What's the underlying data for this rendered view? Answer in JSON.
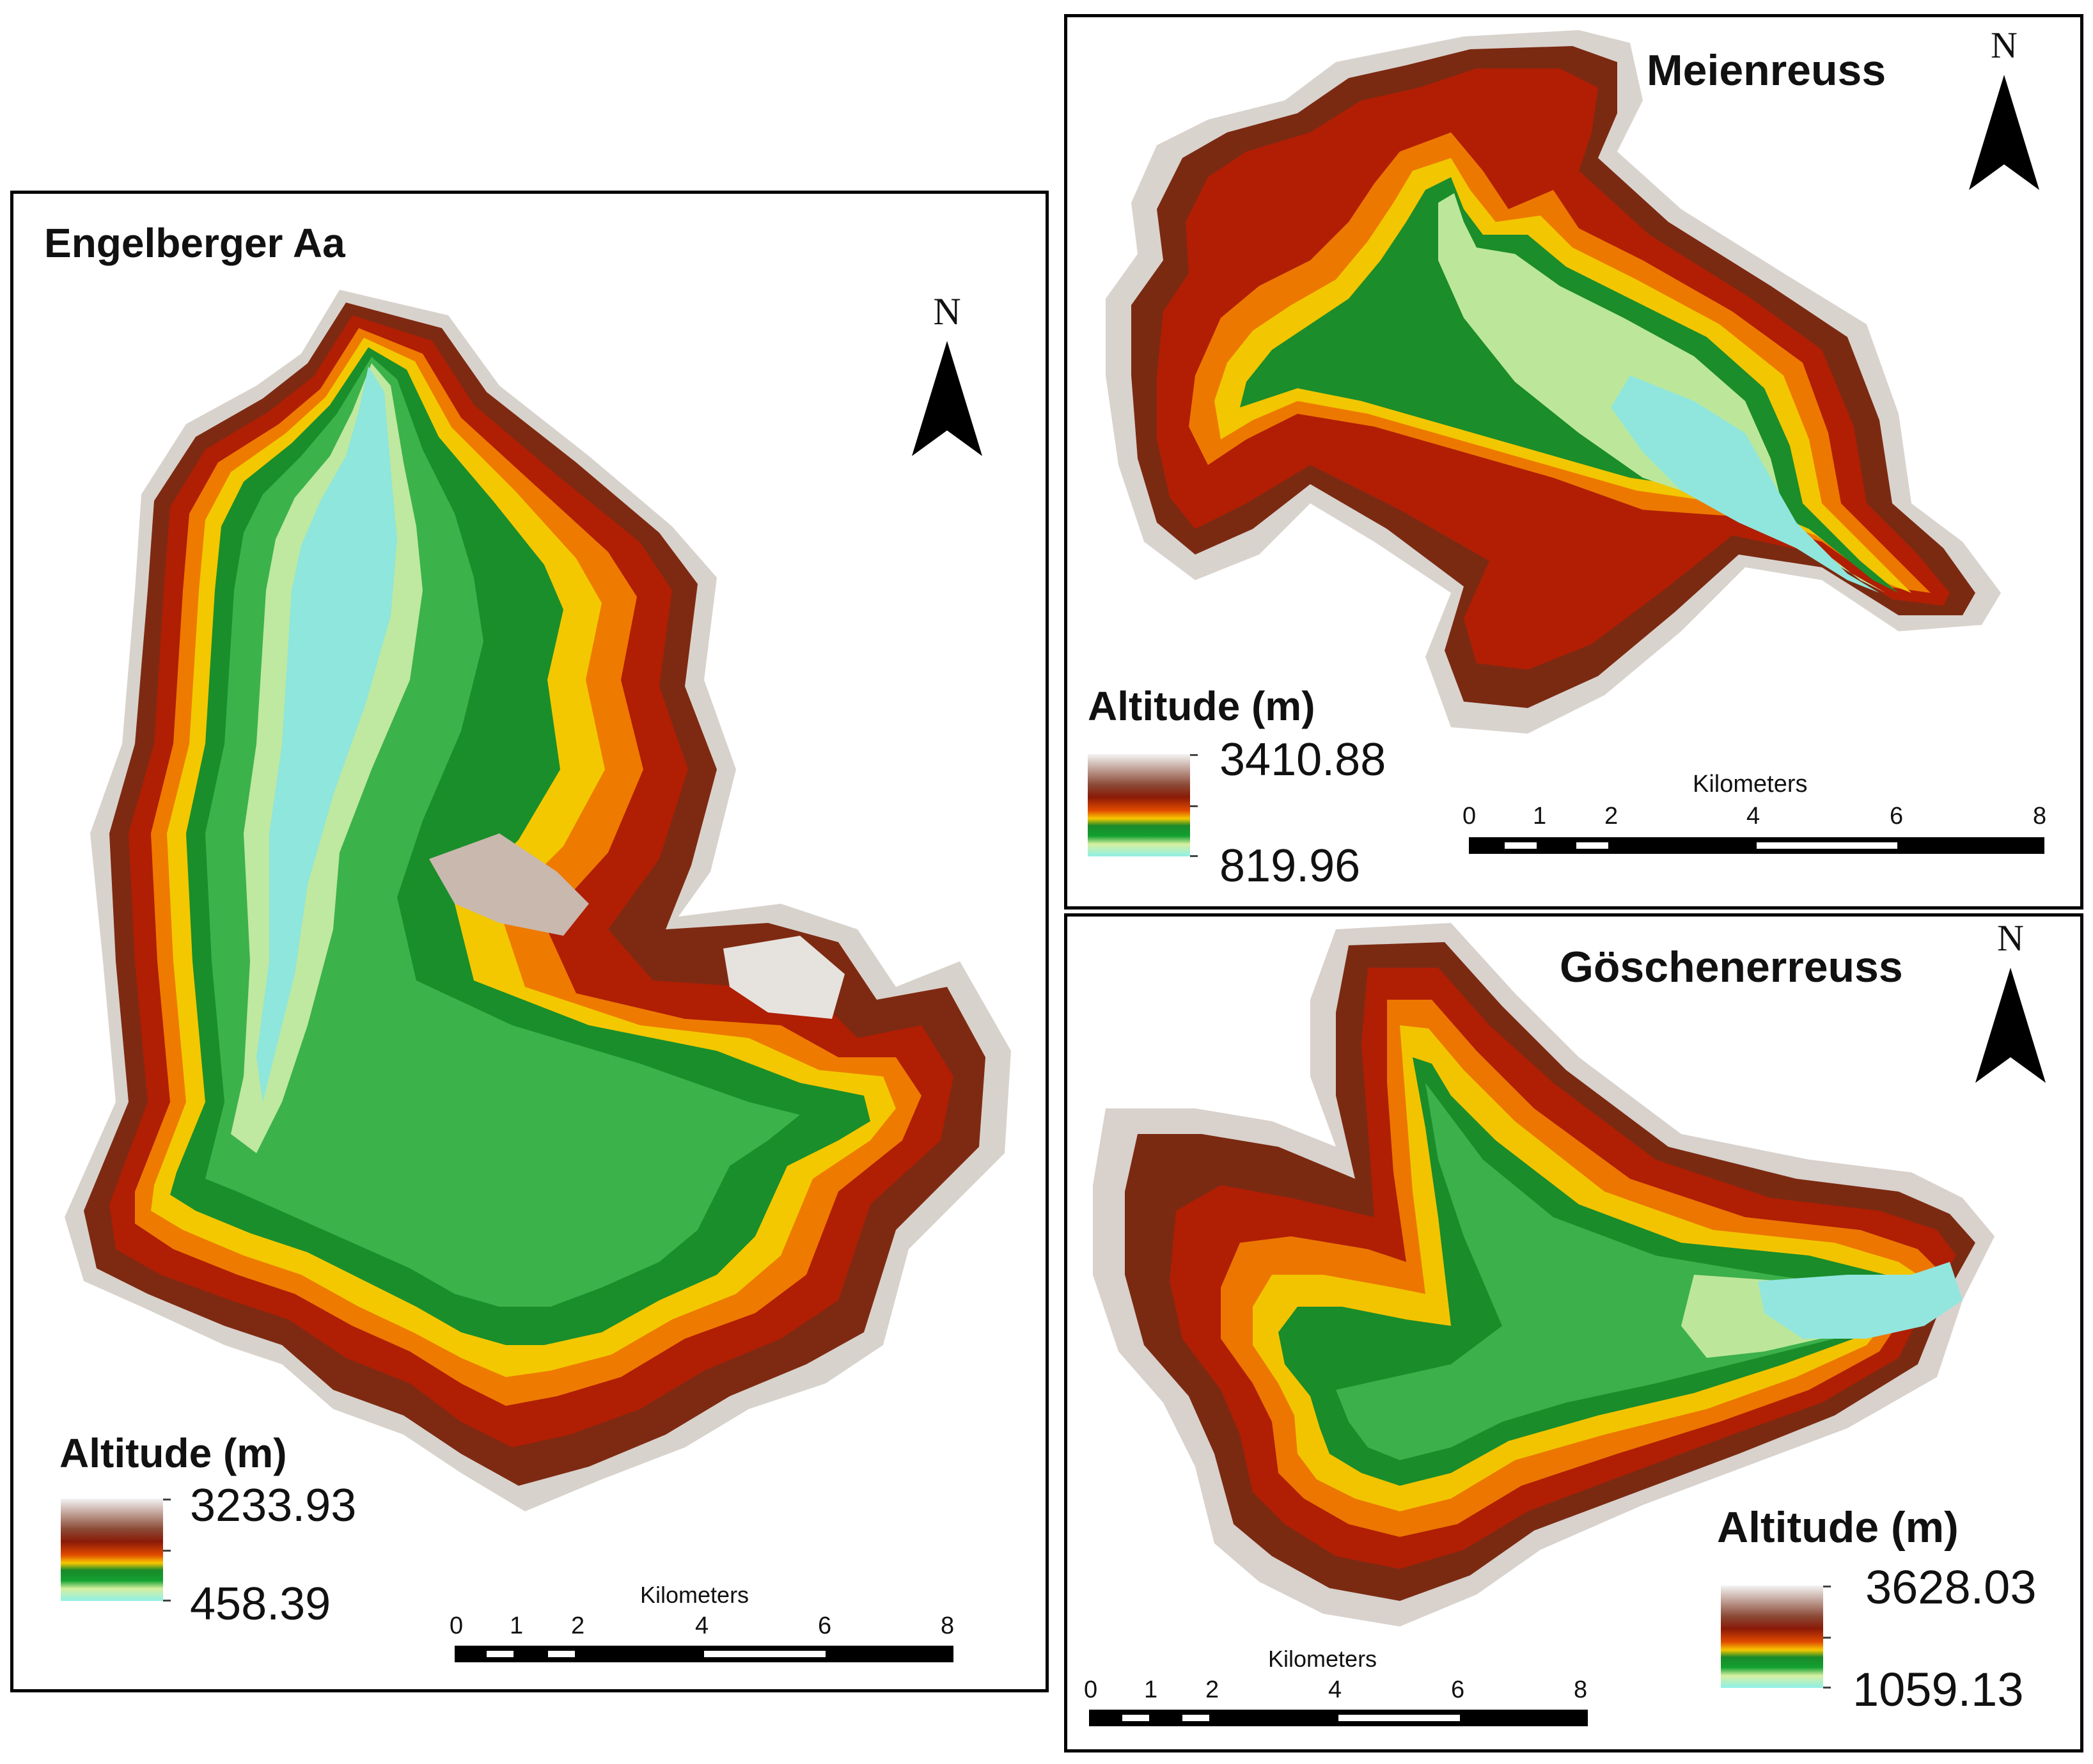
{
  "colors": {
    "ramp": [
      "#f2f2f2",
      "#b08a7a",
      "#7a2a10",
      "#a81e05",
      "#d84008",
      "#f4a000",
      "#f5d800",
      "#2a8a2a",
      "#0a9a28",
      "#5dc84a",
      "#f0f0b0",
      "#9fe8e0"
    ],
    "frame": "#000000"
  },
  "panels": {
    "engelberger": {
      "title": "Engelberger Aa",
      "legend": {
        "title": "Altitude (m)",
        "max": "3233.93",
        "min": "458.39"
      },
      "north": "N",
      "scale": {
        "unit": "Kilometers",
        "ticks": [
          "0",
          "1",
          "2",
          "4",
          "6",
          "8"
        ]
      }
    },
    "meienreuss": {
      "title": "Meienreuss",
      "legend": {
        "title": "Altitude (m)",
        "max": "3410.88",
        "min": "819.96"
      },
      "north": "N",
      "scale": {
        "unit": "Kilometers",
        "ticks": [
          "0",
          "1",
          "2",
          "4",
          "6",
          "8"
        ]
      }
    },
    "goschenerreuss": {
      "title": "Göschenerreuss",
      "legend": {
        "title": "Altitude (m)",
        "max": "3628.03",
        "min": "1059.13"
      },
      "north": "N",
      "scale": {
        "unit": "Kilometers",
        "ticks": [
          "0",
          "1",
          "2",
          "4",
          "6",
          "8"
        ]
      }
    }
  }
}
